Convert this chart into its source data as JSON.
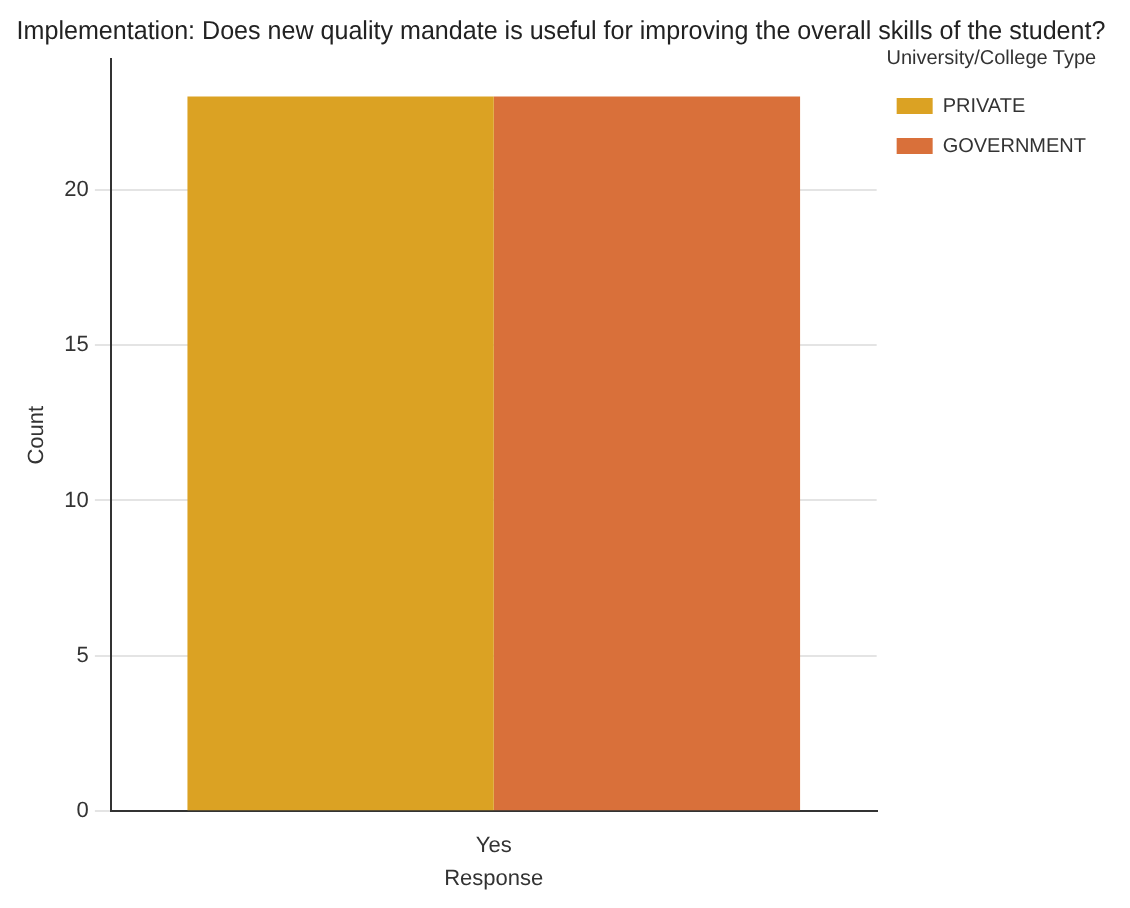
{
  "chart_data": {
    "type": "bar",
    "title": "Implementation: Does new quality mandate is useful for improving the overall skills of the student?",
    "xlabel": "Response",
    "ylabel": "Count",
    "legend_title": "University/College Type",
    "categories": [
      "Yes"
    ],
    "series": [
      {
        "name": "PRIVATE",
        "color": "#dba223",
        "values": [
          23
        ]
      },
      {
        "name": "GOVERNMENT",
        "color": "#d9703a",
        "values": [
          23
        ]
      }
    ],
    "ylim": [
      0,
      24.2
    ],
    "yticks": [
      0,
      5,
      10,
      15,
      20
    ],
    "grid": "y",
    "legend": "top right"
  }
}
